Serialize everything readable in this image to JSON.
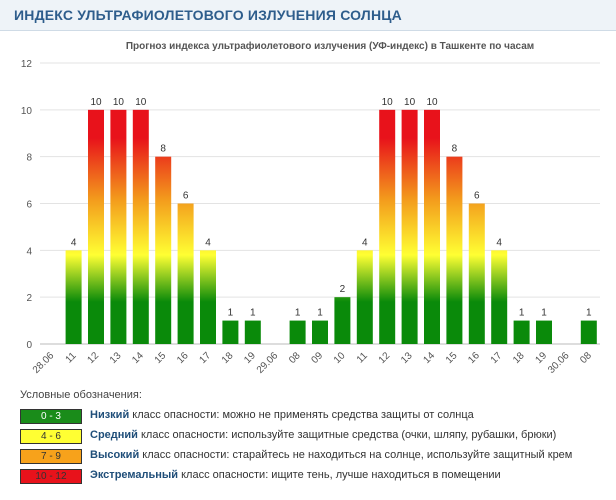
{
  "header": {
    "title": "ИНДЕКС УЛЬТРАФИОЛЕТОВОГО ИЗЛУЧЕНИЯ СОЛНЦА"
  },
  "chart_data": {
    "type": "bar",
    "title": "Прогноз индекса ультрафиолетового излучения (УФ-индекс) в Ташкенте по часам",
    "xlabel": "",
    "ylabel": "",
    "ylim": [
      0,
      12
    ],
    "yticks": [
      0,
      2,
      4,
      6,
      8,
      10,
      12
    ],
    "grid": true,
    "categories": [
      "28.06",
      "11",
      "12",
      "13",
      "14",
      "15",
      "16",
      "17",
      "18",
      "19",
      "29.06",
      "08",
      "09",
      "10",
      "11",
      "12",
      "13",
      "14",
      "15",
      "16",
      "17",
      "18",
      "19",
      "30.06",
      "08"
    ],
    "values": [
      null,
      4,
      10,
      10,
      10,
      8,
      6,
      4,
      1,
      1,
      null,
      1,
      1,
      2,
      4,
      10,
      10,
      10,
      8,
      6,
      4,
      1,
      1,
      null,
      1
    ],
    "data_labels": [
      null,
      "4",
      "10",
      "10",
      "10",
      "8",
      "6",
      "4",
      "1",
      "1",
      null,
      "1",
      "1",
      "2",
      "4",
      "10",
      "10",
      "10",
      "8",
      "6",
      "4",
      "1",
      "1",
      null,
      "1"
    ]
  },
  "legend": {
    "title": "Условные обозначения:",
    "items": [
      {
        "range": "0 - 3",
        "name": "Низкий",
        "text": " класс опасности: можно не применять средства защиты от солнца",
        "color": "#1a8c1a",
        "text_color": "#ffffff"
      },
      {
        "range": "4 - 6",
        "name": "Средний",
        "text": " класс опасности: используйте защитные средства (очки, шляпу, рубашки, брюки)",
        "color": "#ffff33",
        "text_color": "#333333"
      },
      {
        "range": "7 - 9",
        "name": "Высокий",
        "text": " класс опасности: старайтесь не находиться на солнце, используйте защитный крем",
        "color": "#f7a21b",
        "text_color": "#333333"
      },
      {
        "range": "10 - 12",
        "name": "Экстремальный",
        "text": " класс опасности: ищите тень, лучше находиться в помещении",
        "color": "#e8121b",
        "text_color": "#333333"
      }
    ]
  },
  "colors": {
    "green": "#0a8a0a",
    "yellow": "#ffff33",
    "orange": "#f39a1c",
    "red": "#e8121b",
    "grid": "#e3e3e3"
  }
}
